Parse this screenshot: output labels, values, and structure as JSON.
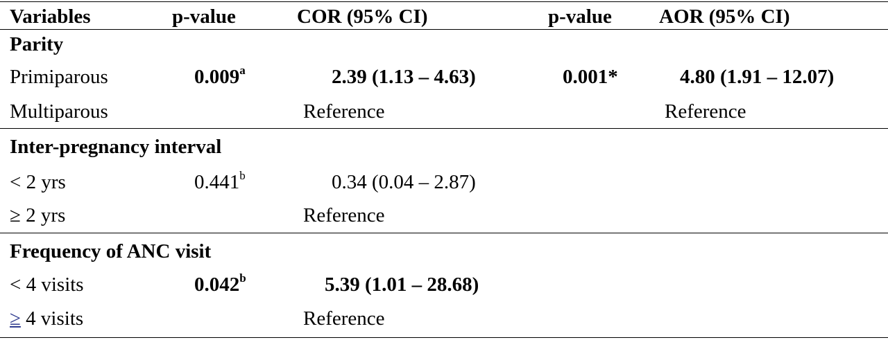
{
  "header": {
    "variables": "Variables",
    "p_value_1": "p-value",
    "cor": "COR (95% CI)",
    "p_value_2": "p-value",
    "aor": "AOR (95% CI)"
  },
  "sections": [
    {
      "title": "Parity",
      "rows": [
        {
          "label": "Primiparous",
          "p1": "0.009",
          "p1_sup": "a",
          "cor": "2.39 (1.13 – 4.63)",
          "p2": "0.001*",
          "aor": "4.80 (1.91 – 12.07)"
        },
        {
          "label": "Multiparous",
          "cor": "Reference",
          "aor": "Reference"
        }
      ]
    },
    {
      "title": "Inter-pregnancy interval",
      "rows": [
        {
          "label": "< 2 yrs",
          "p1": "0.441",
          "p1_sup": "b",
          "cor": "0.34 (0.04 – 2.87)"
        },
        {
          "label": "≥ 2 yrs",
          "cor": "Reference"
        }
      ]
    },
    {
      "title": "Frequency of ANC visit",
      "rows": [
        {
          "label": "< 4 visits",
          "p1": "0.042",
          "p1_sup": "b",
          "cor": "5.39 (1.01 – 28.68)"
        },
        {
          "label_symbol": "≥",
          "label_rest": " 4 visits",
          "cor": "Reference"
        }
      ]
    }
  ]
}
